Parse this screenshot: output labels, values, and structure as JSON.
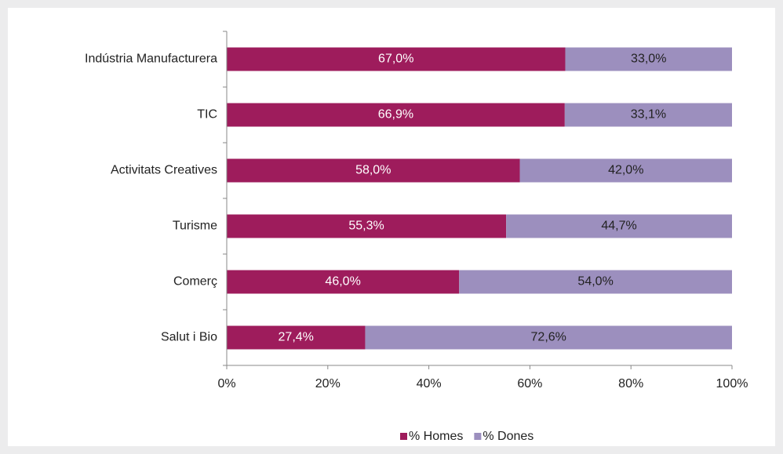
{
  "chart_data": {
    "type": "stacked-barh",
    "categories": [
      "Indústria Manufacturera",
      "TIC",
      "Activitats Creatives",
      "Turisme",
      "Comerç",
      "Salut i Bio"
    ],
    "series": [
      {
        "name": "% Homes",
        "color": "#9e1c5c",
        "values": [
          67.0,
          66.9,
          58.0,
          55.3,
          46.0,
          27.4
        ],
        "value_labels": [
          "67,0%",
          "66,9%",
          "58,0%",
          "55,3%",
          "46,0%",
          "27,4%"
        ]
      },
      {
        "name": "% Dones",
        "color": "#9c8fbe",
        "values": [
          33.0,
          33.1,
          42.0,
          44.7,
          54.0,
          72.6
        ],
        "value_labels": [
          "33,0%",
          "33,1%",
          "42,0%",
          "44,7%",
          "54,0%",
          "72,6%"
        ]
      }
    ],
    "xlim": [
      0,
      100
    ],
    "xticks": [
      {
        "value": 0,
        "label": "0%"
      },
      {
        "value": 20,
        "label": "20%"
      },
      {
        "value": 40,
        "label": "40%"
      },
      {
        "value": 60,
        "label": "60%"
      },
      {
        "value": 80,
        "label": "80%"
      },
      {
        "value": 100,
        "label": "100%"
      }
    ],
    "legend": "bottom"
  }
}
